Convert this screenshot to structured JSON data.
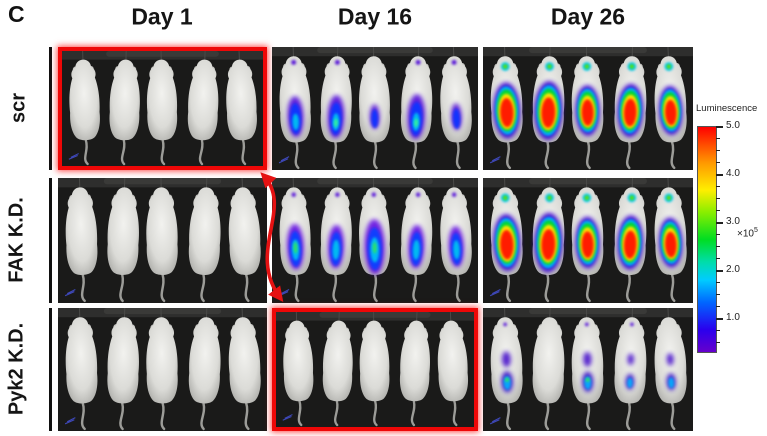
{
  "figure": {
    "panel_label": "C",
    "columns": [
      "Day 1",
      "Day 16",
      "Day 26"
    ],
    "rows": [
      "scr",
      "FAK K.D.",
      "Pyk2 K.D."
    ],
    "colors": {
      "highlight_red": "#ee0707",
      "arrow_red": "#e51212",
      "panel_background": "#1a1a19"
    },
    "panels": [
      {
        "row": "scr",
        "col": "Day 1",
        "mice": 5,
        "signal": "none",
        "highlighted": true
      },
      {
        "row": "scr",
        "col": "Day 16",
        "mice": 5,
        "signal": "blue",
        "highlighted": false
      },
      {
        "row": "scr",
        "col": "Day 26",
        "mice": 5,
        "signal": "rainbow",
        "highlighted": false
      },
      {
        "row": "FAK K.D.",
        "col": "Day 1",
        "mice": 5,
        "signal": "none",
        "highlighted": false
      },
      {
        "row": "FAK K.D.",
        "col": "Day 16",
        "mice": 5,
        "signal": "blue-strong",
        "highlighted": false
      },
      {
        "row": "FAK K.D.",
        "col": "Day 26",
        "mice": 5,
        "signal": "rainbow",
        "highlighted": false
      },
      {
        "row": "Pyk2 K.D.",
        "col": "Day 1",
        "mice": 5,
        "signal": "none",
        "highlighted": false
      },
      {
        "row": "Pyk2 K.D.",
        "col": "Day 16",
        "mice": 5,
        "signal": "none",
        "highlighted": true
      },
      {
        "row": "Pyk2 K.D.",
        "col": "Day 26",
        "mice": 5,
        "signal": "moderate",
        "highlighted": false
      }
    ]
  },
  "colorbar": {
    "title": "Luminescence",
    "tick_labels": [
      "5.0",
      "4.0",
      "3.0",
      "2.0",
      "1.0"
    ],
    "multiplier": "×10",
    "multiplier_exponent": "5"
  }
}
